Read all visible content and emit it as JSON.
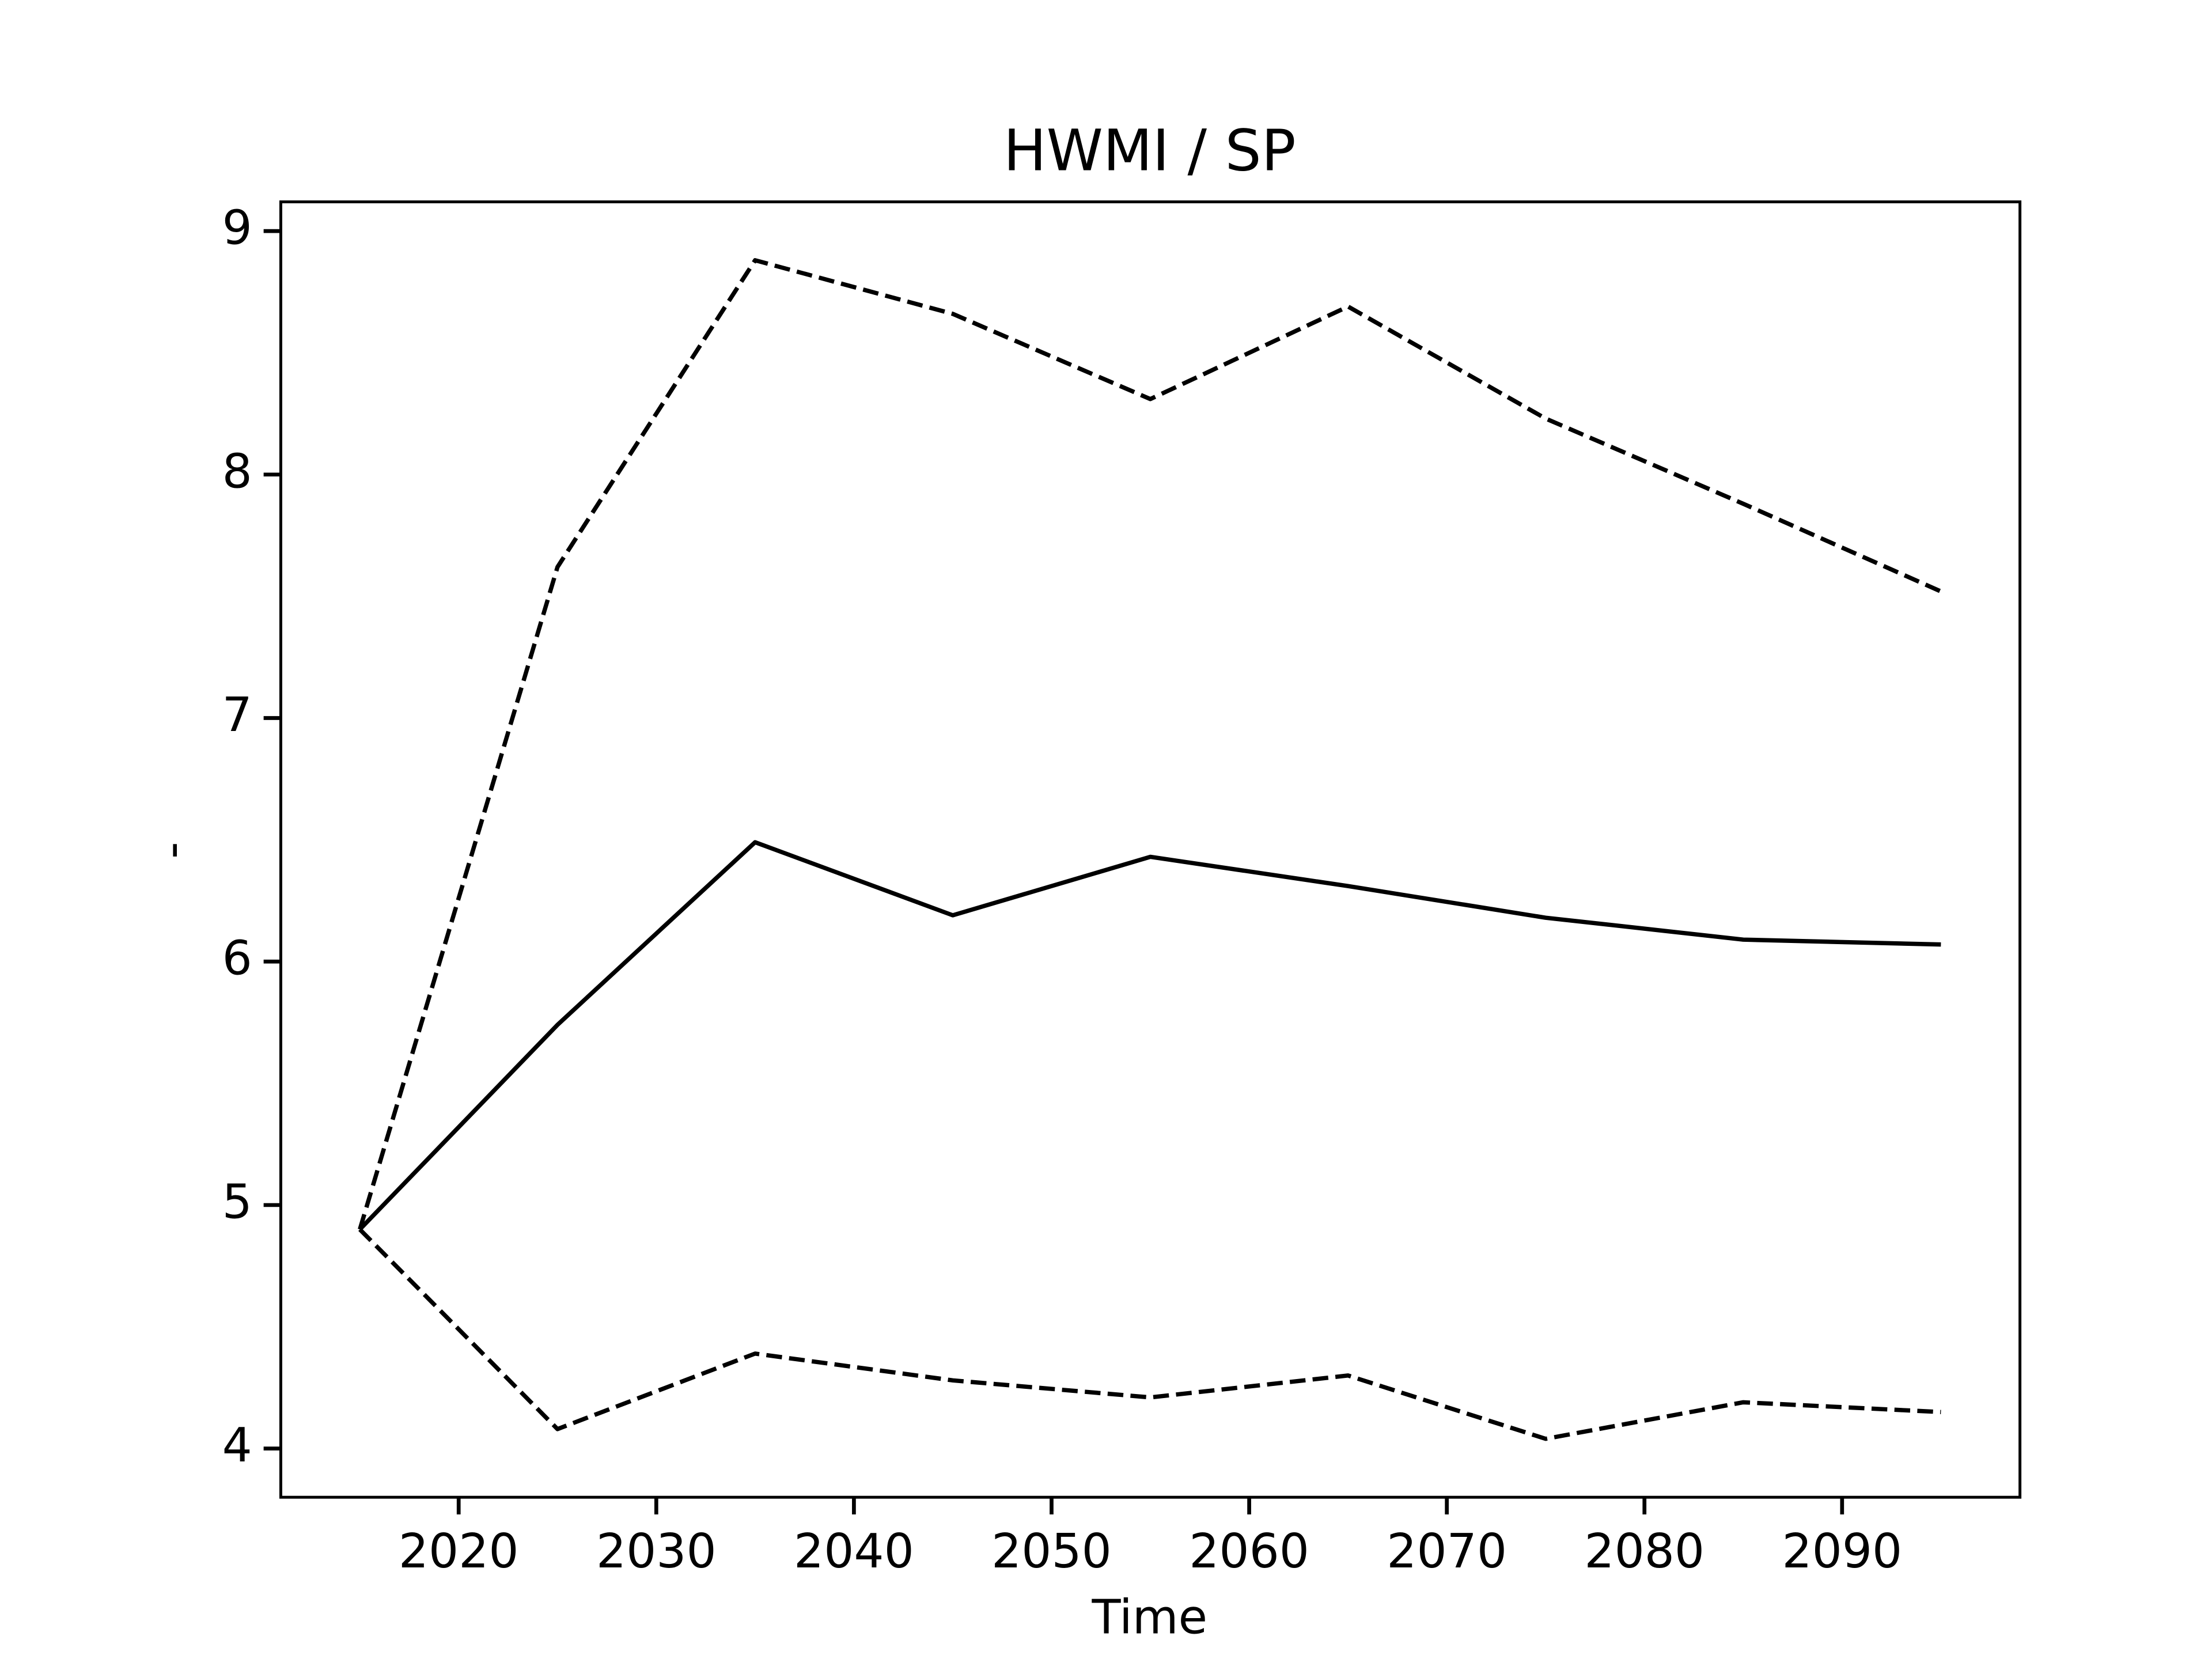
{
  "chart_data": {
    "type": "line",
    "title": "HWMI / SP",
    "xlabel": "Time",
    "ylabel": "-",
    "x": [
      2015,
      2025,
      2035,
      2045,
      2055,
      2065,
      2075,
      2085,
      2095
    ],
    "series": [
      {
        "color": "#000000",
        "dash": "solid",
        "values": [
          4.9,
          5.74,
          6.49,
          6.19,
          6.43,
          6.31,
          6.18,
          6.09,
          6.07
        ]
      },
      {
        "color": "#000000",
        "dash": "dashed",
        "values": [
          4.9,
          7.62,
          8.88,
          8.66,
          8.31,
          8.69,
          8.23,
          7.88,
          7.52
        ]
      },
      {
        "color": "#000000",
        "dash": "dashed",
        "values": [
          4.9,
          4.08,
          4.39,
          4.28,
          4.21,
          4.3,
          4.04,
          4.19,
          4.15
        ]
      }
    ],
    "xlim": [
      2011,
      2099
    ],
    "xticks": [
      2020,
      2030,
      2040,
      2050,
      2060,
      2070,
      2080,
      2090
    ],
    "ylim": [
      3.8,
      9.12
    ],
    "yticks": [
      4,
      5,
      6,
      7,
      8,
      9
    ],
    "grid": false
  }
}
